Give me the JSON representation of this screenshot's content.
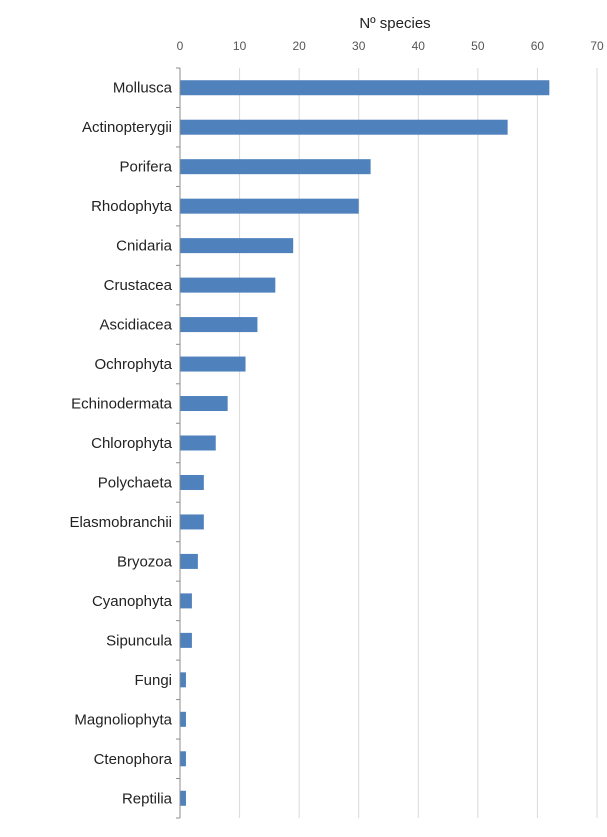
{
  "chart_data": {
    "type": "bar",
    "orientation": "horizontal",
    "title": "",
    "xlabel": "Nº species",
    "ylabel": "",
    "xlim": [
      0,
      70
    ],
    "x_ticks": [
      0,
      10,
      20,
      30,
      40,
      50,
      60,
      70
    ],
    "x_axis_position": "top",
    "grid": true,
    "legend": "none",
    "bar_color": "#4f81bd",
    "categories": [
      "Mollusca",
      "Actinopterygii",
      "Porifera",
      "Rhodophyta",
      "Cnidaria",
      "Crustacea",
      "Ascidiacea",
      "Ochrophyta",
      "Echinodermata",
      "Chlorophyta",
      "Polychaeta",
      "Elasmobranchii",
      "Bryozoa",
      "Cyanophyta",
      "Sipuncula",
      "Fungi",
      "Magnoliophyta",
      "Ctenophora",
      "Reptilia"
    ],
    "values": [
      62,
      55,
      32,
      30,
      19,
      16,
      13,
      11,
      8,
      6,
      4,
      4,
      3,
      2,
      2,
      1,
      1,
      1,
      1
    ]
  }
}
